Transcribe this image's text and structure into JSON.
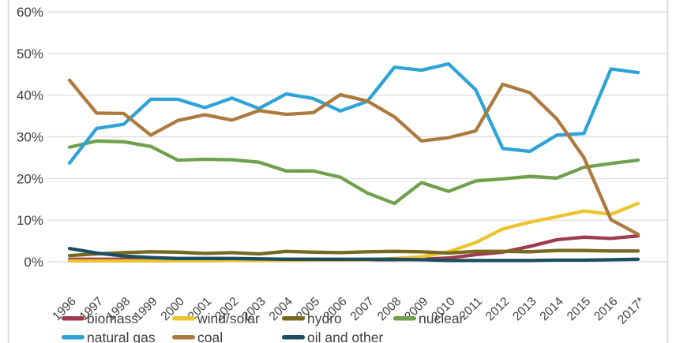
{
  "chart_data": {
    "type": "line",
    "title": "",
    "xlabel": "",
    "ylabel": "",
    "categories": [
      "1996",
      "1997",
      "1998",
      "1999",
      "2000",
      "2001",
      "2002",
      "2003",
      "2004",
      "2005",
      "2006",
      "2007",
      "2008",
      "2009",
      "2010",
      "2011",
      "2012",
      "2013",
      "2014",
      "2015",
      "2016",
      "2017*"
    ],
    "y_tick_labels": [
      "0%",
      "10%",
      "20%",
      "30%",
      "40%",
      "50%",
      "60%"
    ],
    "ylim": [
      0,
      60
    ],
    "y_step": 10,
    "grid": "horizontal",
    "legend_position": "bottom",
    "series": [
      {
        "name": "biomass",
        "color": "#9e3b4d",
        "values": [
          0.6,
          0.6,
          0.6,
          0.5,
          0.5,
          0.5,
          0.6,
          0.6,
          0.6,
          0.6,
          0.5,
          0.5,
          0.5,
          0.6,
          0.9,
          1.7,
          2.3,
          3.7,
          5.3,
          5.9,
          5.6,
          6.2
        ]
      },
      {
        "name": "wind/solar",
        "color": "#edc32e",
        "values": [
          0.2,
          0.2,
          0.2,
          0.2,
          0.2,
          0.2,
          0.3,
          0.3,
          0.3,
          0.4,
          0.4,
          0.5,
          0.8,
          1.2,
          2.4,
          4.6,
          7.9,
          9.5,
          10.8,
          12.2,
          11.4,
          14.0
        ]
      },
      {
        "name": "hydro",
        "color": "#77691f",
        "values": [
          1.5,
          1.9,
          2.2,
          2.4,
          2.3,
          2.0,
          2.2,
          1.9,
          2.5,
          2.3,
          2.2,
          2.4,
          2.5,
          2.4,
          2.1,
          2.5,
          2.5,
          2.4,
          2.7,
          2.7,
          2.6,
          2.6
        ]
      },
      {
        "name": "nuclear",
        "color": "#70a04b",
        "values": [
          27.5,
          29.0,
          28.8,
          27.7,
          24.4,
          24.6,
          24.5,
          23.9,
          21.8,
          21.8,
          20.3,
          16.5,
          14.0,
          19.0,
          16.9,
          19.4,
          19.9,
          20.5,
          20.1,
          22.7,
          23.6,
          24.4
        ]
      },
      {
        "name": "natural gas",
        "color": "#2ea3d8",
        "values": [
          23.7,
          32.0,
          33.0,
          39.0,
          39.0,
          37.0,
          39.3,
          36.8,
          40.3,
          39.2,
          36.2,
          38.5,
          46.7,
          46.0,
          47.5,
          41.3,
          27.2,
          26.5,
          30.4,
          30.8,
          46.3,
          45.4
        ]
      },
      {
        "name": "coal",
        "color": "#ad7a3d",
        "values": [
          43.6,
          35.7,
          35.6,
          30.4,
          33.9,
          35.3,
          34.0,
          36.3,
          35.4,
          35.8,
          40.1,
          38.6,
          34.8,
          29.0,
          29.8,
          31.4,
          42.6,
          40.6,
          34.3,
          25.0,
          10.1,
          6.6
        ]
      },
      {
        "name": "oil and other",
        "color": "#1c4e63",
        "values": [
          3.2,
          2.1,
          1.4,
          1.0,
          0.8,
          0.8,
          0.8,
          0.7,
          0.6,
          0.6,
          0.6,
          0.6,
          0.6,
          0.5,
          0.3,
          0.3,
          0.3,
          0.3,
          0.4,
          0.4,
          0.5,
          0.6
        ]
      }
    ],
    "legend_rows": [
      [
        "biomass",
        "wind/solar",
        "hydro",
        "nuclear"
      ],
      [
        "natural gas",
        "coal",
        "oil and other"
      ]
    ]
  },
  "style": {
    "grid_color": "#d9d9d9",
    "border_color": "#d4d4d4",
    "text_color": "#3f3f3f",
    "background": "#ffffff"
  }
}
